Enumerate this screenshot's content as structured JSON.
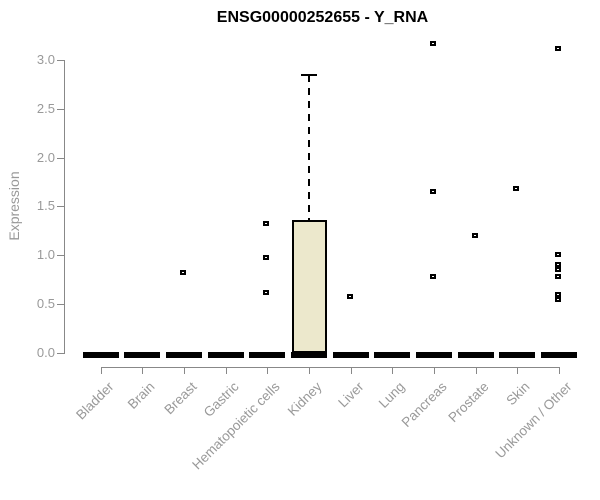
{
  "title": "ENSG00000252655 - Y_RNA",
  "chart_data": {
    "type": "boxplot",
    "title": "ENSG00000252655 - Y_RNA",
    "xlabel": "",
    "ylabel": "Expression",
    "ylim": [
      0,
      3.2
    ],
    "yticks": [
      "0.0",
      "0.5",
      "1.0",
      "1.5",
      "2.0",
      "2.5",
      "3.0"
    ],
    "grid": false,
    "legend": "none",
    "categories": [
      "Bladder",
      "Brain",
      "Breast",
      "Gastric",
      "Hematopoietic cells",
      "Kidney",
      "Liver",
      "Lung",
      "Pancreas",
      "Prostate",
      "Skin",
      "Unknown / Other"
    ],
    "series": [
      {
        "category": "Bladder",
        "q1": 0,
        "median": 0,
        "q3": 0,
        "whisker_high": 0,
        "outliers": []
      },
      {
        "category": "Brain",
        "q1": 0,
        "median": 0,
        "q3": 0,
        "whisker_high": 0,
        "outliers": []
      },
      {
        "category": "Breast",
        "q1": 0,
        "median": 0,
        "q3": 0,
        "whisker_high": 0,
        "outliers": [
          0.82
        ]
      },
      {
        "category": "Gastric",
        "q1": 0,
        "median": 0,
        "q3": 0,
        "whisker_high": 0,
        "outliers": []
      },
      {
        "category": "Hematopoietic cells",
        "q1": 0,
        "median": 0,
        "q3": 0,
        "whisker_high": 0,
        "outliers": [
          1.33,
          0.98,
          0.62
        ]
      },
      {
        "category": "Kidney",
        "q1": 0,
        "median": 0,
        "q3": 1.36,
        "whisker_high": 2.85,
        "outliers": []
      },
      {
        "category": "Liver",
        "q1": 0,
        "median": 0,
        "q3": 0,
        "whisker_high": 0,
        "outliers": [
          0.58
        ]
      },
      {
        "category": "Lung",
        "q1": 0,
        "median": 0,
        "q3": 0,
        "whisker_high": 0,
        "outliers": []
      },
      {
        "category": "Pancreas",
        "q1": 0,
        "median": 0,
        "q3": 0,
        "whisker_high": 0,
        "outliers": [
          3.17,
          1.65,
          0.78
        ]
      },
      {
        "category": "Prostate",
        "q1": 0,
        "median": 0,
        "q3": 0,
        "whisker_high": 0,
        "outliers": [
          1.2
        ]
      },
      {
        "category": "Skin",
        "q1": 0,
        "median": 0,
        "q3": 0,
        "whisker_high": 0,
        "outliers": [
          1.68
        ]
      },
      {
        "category": "Unknown / Other",
        "q1": 0,
        "median": 0,
        "q3": 0,
        "whisker_high": 0,
        "outliers": [
          3.12,
          1.01,
          0.91,
          0.86,
          0.78,
          0.6,
          0.55
        ]
      }
    ],
    "colors": {
      "box_fill": "#ECE8CC",
      "box_border": "#000000",
      "axis": "#888888",
      "tick_label": "#999999",
      "title": "#000000",
      "marker": "#000000"
    }
  }
}
